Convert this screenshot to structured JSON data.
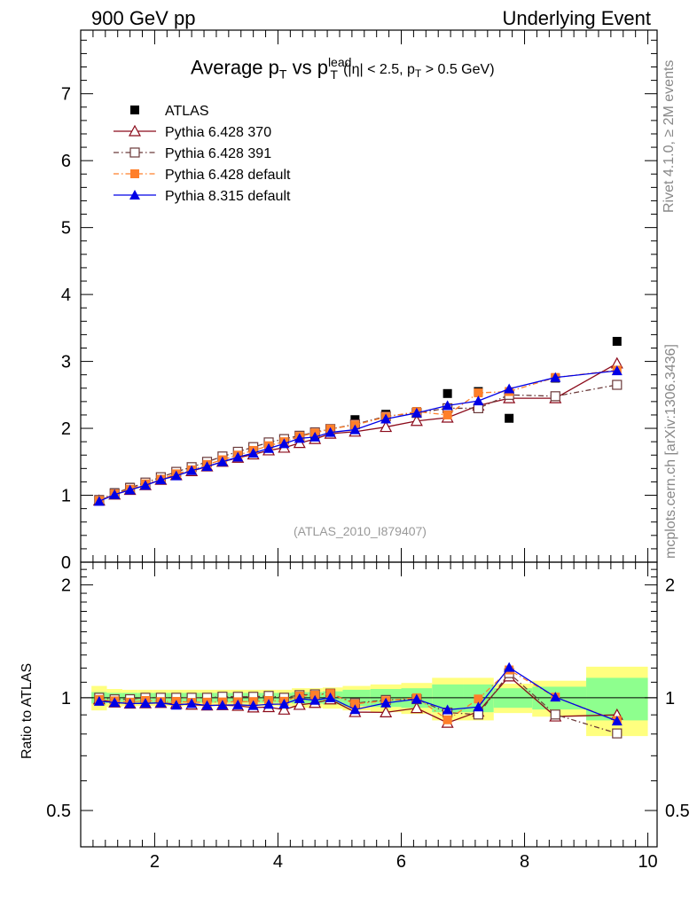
{
  "header": {
    "left": "900 GeV pp",
    "right": "Underlying Event"
  },
  "side_labels": {
    "rivet": "Rivet 4.1.0, ≥ 2M events",
    "mcplots": "mcplots.cern.ch [arXiv:1306.3436]"
  },
  "plot_title": {
    "main": "Average p",
    "sub1": "T",
    "vs": " vs p",
    "sub2": "T",
    "sup2": "lead",
    "cut_open": " (|η| < 2.5, p",
    "cut_sub": "T",
    "cut_close": " > 0.5 GeV)"
  },
  "reference_id": "(ATLAS_2010_I879407)",
  "ratio_ylabel": "Ratio to ATLAS",
  "chart_data": {
    "type": "line",
    "title": "Average pT vs pT lead (|eta| < 2.5, pT > 0.5 GeV)",
    "xlim": [
      0.8,
      10.15
    ],
    "main_ylim": [
      0,
      7.95
    ],
    "ratio_ylim": [
      0.4,
      2.3
    ],
    "x_ticks": [
      "2",
      "4",
      "6",
      "8",
      "10"
    ],
    "main_y_ticks": [
      "0",
      "1",
      "2",
      "3",
      "4",
      "5",
      "6",
      "7"
    ],
    "ratio_y_ticks": [
      "0.5",
      "1",
      "2"
    ],
    "x": [
      1.1,
      1.35,
      1.6,
      1.85,
      2.1,
      2.35,
      2.6,
      2.85,
      3.1,
      3.35,
      3.6,
      3.85,
      4.1,
      4.35,
      4.6,
      4.85,
      5.25,
      5.75,
      6.25,
      6.75,
      7.25,
      7.75,
      8.5,
      9.5
    ],
    "series": [
      {
        "name": "ATLAS",
        "color": "#000000",
        "marker": "square",
        "line": "none",
        "values": [
          0.93,
          1.04,
          1.12,
          1.19,
          1.27,
          1.35,
          1.42,
          1.5,
          1.57,
          1.64,
          1.71,
          1.77,
          1.84,
          1.86,
          1.9,
          1.94,
          2.13,
          2.21,
          2.25,
          2.52,
          2.55,
          2.15,
          2.75,
          3.3
        ]
      },
      {
        "name": "Pythia 6.428 370",
        "color": "#8b0a1a",
        "marker": "triangle-open",
        "line": "solid",
        "values": [
          0.92,
          1.01,
          1.08,
          1.15,
          1.23,
          1.3,
          1.36,
          1.43,
          1.5,
          1.56,
          1.61,
          1.67,
          1.71,
          1.78,
          1.84,
          1.92,
          1.95,
          2.02,
          2.11,
          2.16,
          2.34,
          2.45,
          2.45,
          2.97
        ]
      },
      {
        "name": "Pythia 6.428 391",
        "color": "#6b3a3a",
        "marker": "square-open",
        "line": "dashdot",
        "values": [
          0.93,
          1.03,
          1.11,
          1.19,
          1.27,
          1.35,
          1.42,
          1.5,
          1.58,
          1.65,
          1.72,
          1.79,
          1.84,
          1.89,
          1.94,
          1.99,
          2.06,
          2.18,
          2.23,
          2.3,
          2.3,
          2.5,
          2.48,
          2.65
        ]
      },
      {
        "name": "Pythia 6.428 default",
        "color": "#ff7f2a",
        "marker": "square",
        "line": "dashdot",
        "values": [
          0.92,
          1.02,
          1.09,
          1.17,
          1.24,
          1.32,
          1.38,
          1.46,
          1.53,
          1.6,
          1.67,
          1.74,
          1.8,
          1.88,
          1.93,
          1.99,
          2.05,
          2.17,
          2.25,
          2.2,
          2.53,
          2.55,
          2.76,
          2.87
        ]
      },
      {
        "name": "Pythia 8.315 default",
        "color": "#0000e6",
        "marker": "triangle",
        "line": "solid",
        "values": [
          0.91,
          1.01,
          1.08,
          1.15,
          1.23,
          1.29,
          1.37,
          1.43,
          1.5,
          1.57,
          1.63,
          1.7,
          1.77,
          1.85,
          1.87,
          1.94,
          1.98,
          2.14,
          2.23,
          2.34,
          2.41,
          2.59,
          2.76,
          2.86
        ]
      }
    ]
  }
}
